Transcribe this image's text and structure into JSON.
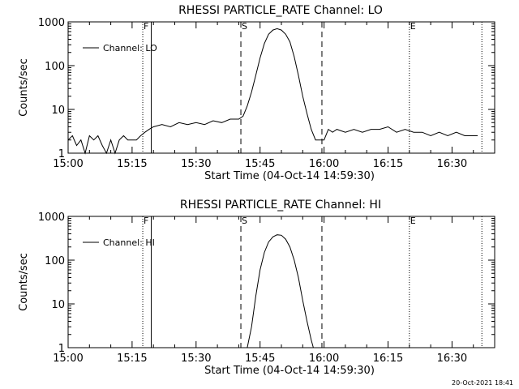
{
  "footer": {
    "timestamp": "20-Oct-2021 18:41"
  },
  "chart_data": [
    {
      "type": "line",
      "title": "RHESSI PARTICLE_RATE Channel: LO",
      "xlabel": "Start Time (04-Oct-14 14:59:30)",
      "ylabel": "Counts/sec",
      "yscale": "log",
      "xlim": [
        "15:00",
        "16:40"
      ],
      "ylim": [
        1,
        1000
      ],
      "xticks": [
        "15:00",
        "15:15",
        "15:30",
        "15:45",
        "16:00",
        "16:15",
        "16:30"
      ],
      "yticks": [
        "1",
        "10",
        "100",
        "1000"
      ],
      "legend": {
        "placement": "top-left",
        "entries": [
          "Channel: LO"
        ]
      },
      "markers": [
        {
          "label": "F",
          "time": "15:17.5",
          "style": "dotted"
        },
        {
          "label": "",
          "time": "15:19.5",
          "style": "solid"
        },
        {
          "label": "S",
          "time": "15:40.5",
          "style": "dashed"
        },
        {
          "label": "",
          "time": "15:59.5",
          "style": "dashed"
        },
        {
          "label": "E",
          "time": "16:20",
          "style": "dotted"
        },
        {
          "label": "",
          "time": "16:37",
          "style": "dotted"
        }
      ],
      "series": [
        {
          "name": "Channel: LO",
          "x": [
            "15:00",
            "15:01",
            "15:02",
            "15:03",
            "15:04",
            "15:05",
            "15:06",
            "15:07",
            "15:08",
            "15:09",
            "15:10",
            "15:11",
            "15:12",
            "15:13",
            "15:14",
            "15:15",
            "15:16",
            "15:17",
            "15:18",
            "15:19",
            "15:20",
            "15:22",
            "15:24",
            "15:26",
            "15:28",
            "15:30",
            "15:32",
            "15:34",
            "15:36",
            "15:38",
            "15:40",
            "15:41",
            "15:42",
            "15:43",
            "15:44",
            "15:45",
            "15:46",
            "15:47",
            "15:48",
            "15:49",
            "15:50",
            "15:51",
            "15:52",
            "15:53",
            "15:54",
            "15:55",
            "15:56",
            "15:57",
            "15:58",
            "15:59",
            "16:00",
            "16:01",
            "16:02",
            "16:03",
            "16:05",
            "16:07",
            "16:09",
            "16:11",
            "16:13",
            "16:15",
            "16:17",
            "16:19",
            "16:21",
            "16:23",
            "16:25",
            "16:27",
            "16:29",
            "16:31",
            "16:33",
            "16:35",
            "16:36"
          ],
          "y": [
            2.0,
            2.5,
            1.5,
            2.0,
            1.0,
            2.5,
            2.0,
            2.5,
            1.5,
            1.0,
            2.0,
            1.0,
            2.0,
            2.5,
            2.0,
            2.0,
            2.0,
            2.5,
            3.0,
            3.5,
            4.0,
            4.5,
            4.0,
            5.0,
            4.5,
            5.0,
            4.5,
            5.5,
            5.0,
            6.0,
            6.0,
            7.0,
            12,
            25,
            60,
            150,
            320,
            520,
            650,
            700,
            650,
            520,
            350,
            160,
            60,
            20,
            8,
            3.5,
            2.0,
            2.0,
            2.0,
            3.5,
            3.0,
            3.5,
            3.0,
            3.5,
            3.0,
            3.5,
            3.5,
            4.0,
            3.0,
            3.5,
            3.0,
            3.0,
            2.5,
            3.0,
            2.5,
            3.0,
            2.5,
            2.5,
            2.5
          ]
        }
      ]
    },
    {
      "type": "line",
      "title": "RHESSI PARTICLE_RATE Channel: HI",
      "xlabel": "Start Time (04-Oct-14 14:59:30)",
      "ylabel": "Counts/sec",
      "yscale": "log",
      "xlim": [
        "15:00",
        "16:40"
      ],
      "ylim": [
        1,
        1000
      ],
      "xticks": [
        "15:00",
        "15:15",
        "15:30",
        "15:45",
        "16:00",
        "16:15",
        "16:30"
      ],
      "yticks": [
        "1",
        "10",
        "100",
        "1000"
      ],
      "legend": {
        "placement": "top-left",
        "entries": [
          "Channel: HI"
        ]
      },
      "markers": [
        {
          "label": "F",
          "time": "15:17.5",
          "style": "dotted"
        },
        {
          "label": "",
          "time": "15:19.5",
          "style": "solid"
        },
        {
          "label": "S",
          "time": "15:40.5",
          "style": "dashed"
        },
        {
          "label": "",
          "time": "15:59.5",
          "style": "dashed"
        },
        {
          "label": "E",
          "time": "16:20",
          "style": "dotted"
        },
        {
          "label": "",
          "time": "16:37",
          "style": "dotted"
        }
      ],
      "series": [
        {
          "name": "Channel: HI",
          "x": [
            "15:42",
            "15:43",
            "15:44",
            "15:45",
            "15:46",
            "15:47",
            "15:48",
            "15:49",
            "15:50",
            "15:51",
            "15:52",
            "15:53",
            "15:54",
            "15:55",
            "15:56",
            "15:57",
            "15:57.5"
          ],
          "y": [
            1.0,
            3.0,
            15,
            60,
            150,
            260,
            340,
            380,
            370,
            300,
            200,
            100,
            40,
            12,
            4,
            1.5,
            1.0
          ]
        }
      ]
    }
  ]
}
